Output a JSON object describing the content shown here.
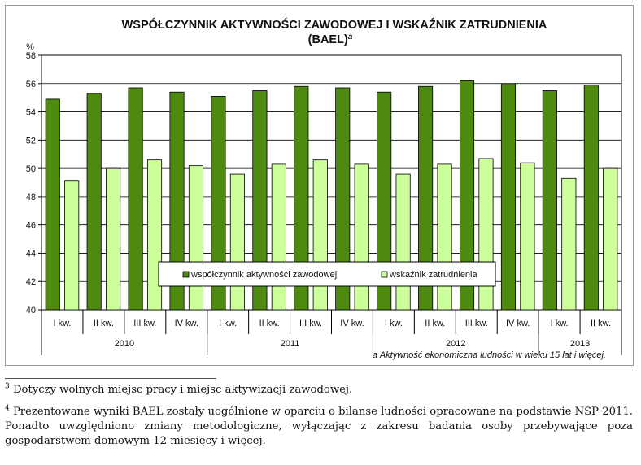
{
  "chart_data": {
    "type": "bar",
    "title": "WSPÓŁCZYNNIK AKTYWNOŚCI ZAWODOWEJ I WSKAŹNIK ZATRUDNIENIA",
    "title_line2": "(BAEL)",
    "title_sup": "a",
    "ylabel": "%",
    "ylim": [
      40,
      58
    ],
    "yticks": [
      "40",
      "42",
      "44",
      "46",
      "48",
      "50",
      "52",
      "54",
      "56",
      "58"
    ],
    "categories": [
      "I kw.",
      "II kw.",
      "III kw.",
      "IV kw.",
      "I kw.",
      "II kw.",
      "III kw.",
      "IV kw.",
      "I kw.",
      "II kw.",
      "III kw.",
      "IV kw.",
      "I kw.",
      "II kw."
    ],
    "years": [
      {
        "label": "2010",
        "span": 4
      },
      {
        "label": "2011",
        "span": 4
      },
      {
        "label": "2012",
        "span": 4
      },
      {
        "label": "2013",
        "span": 2
      }
    ],
    "series": [
      {
        "name": "współczynnik aktywności zawodowej",
        "color": "#4f8a10",
        "values": [
          54.9,
          55.3,
          55.7,
          55.4,
          55.1,
          55.5,
          55.8,
          55.7,
          55.4,
          55.8,
          56.2,
          56.0,
          55.5,
          55.9
        ]
      },
      {
        "name": "wskaźnik zatrudnienia",
        "color": "#ccff99",
        "values": [
          49.1,
          50.0,
          50.6,
          50.2,
          49.6,
          50.3,
          50.6,
          50.3,
          49.6,
          50.3,
          50.7,
          50.4,
          49.3,
          50.0
        ]
      }
    ],
    "grid": true,
    "legend_position": "bottom-center",
    "note": "a Aktywność ekonomiczna ludności w wieku 15 lat i więcej."
  },
  "footnotes": [
    {
      "mark": "3",
      "text": "Dotyczy wolnych miejsc pracy i miejsc aktywizacji zawodowej."
    },
    {
      "mark": "4",
      "text": "Prezentowane wyniki BAEL zostały uogólnione w oparciu o bilanse ludności opracowane na podstawie NSP 2011. Ponadto uwzględniono zmiany metodologiczne, wyłączając z zakresu badania osoby przebywające poza gospodarstwem domowym 12 miesięcy i więcej."
    }
  ]
}
